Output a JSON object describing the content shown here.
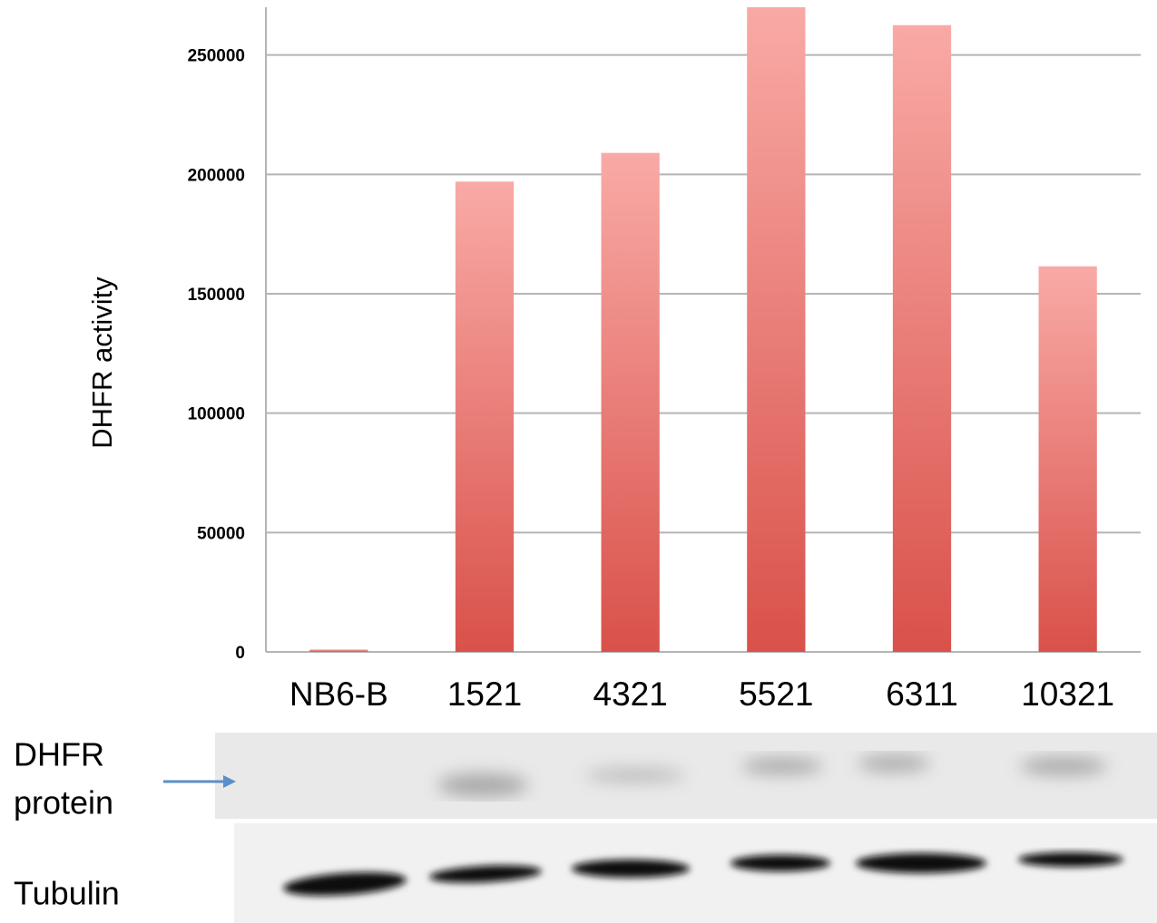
{
  "chart_data": {
    "type": "bar",
    "y_label": "DHFR activity",
    "categories": [
      "NB6-B",
      "1521",
      "4321",
      "5521",
      "6311",
      "10321"
    ],
    "values": [
      1000,
      197000,
      209000,
      270000,
      262500,
      161500
    ],
    "color": "#e0625a",
    "ylim": [
      0,
      270000
    ],
    "yticks": [
      0,
      50000,
      100000,
      150000,
      200000,
      250000
    ],
    "grid": true
  },
  "blot": {
    "protein_label": [
      "DHFR",
      "protein"
    ],
    "tubulin_label": "Tubulin"
  }
}
